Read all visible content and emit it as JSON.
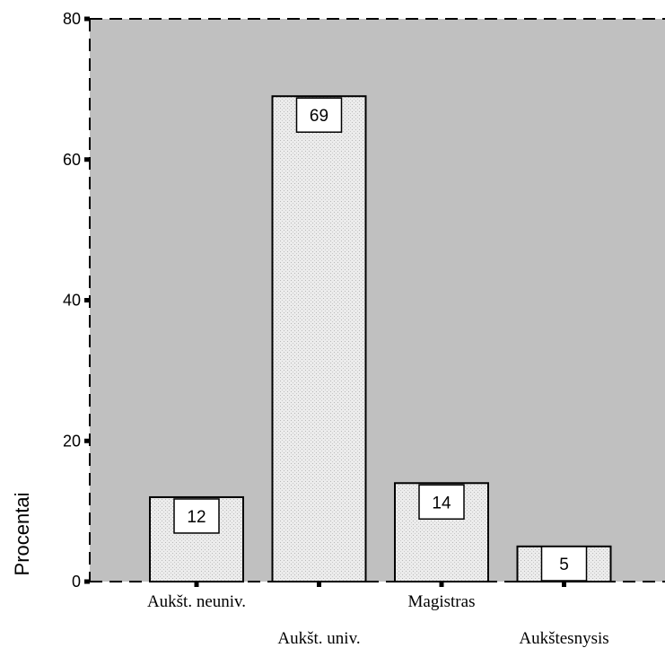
{
  "chart_data": {
    "type": "bar",
    "categories": [
      "Aukšt. neuniv.",
      "Aukšt. univ.",
      "Magistras",
      "Aukštesnysis"
    ],
    "values": [
      12,
      69,
      14,
      5
    ],
    "data_labels": [
      "12",
      "69",
      "14",
      "5"
    ],
    "title": "",
    "xlabel": "",
    "ylabel": "Procentai",
    "ylim": [
      0,
      80
    ],
    "yticks": [
      "0",
      "20",
      "40",
      "60",
      "80"
    ],
    "grid": false,
    "legend": "none",
    "colors": {
      "plot_background": "#c0c0c0",
      "bar_fill": "#e6e6e6",
      "bar_stroke": "#000000",
      "label_box": "#ffffff"
    }
  }
}
